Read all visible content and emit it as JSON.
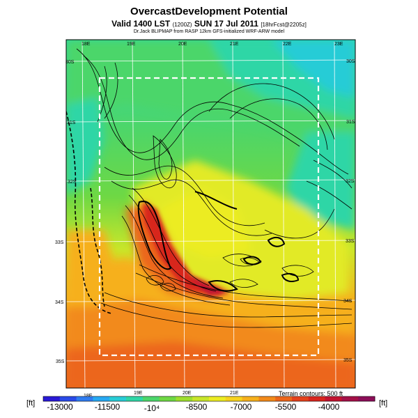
{
  "header": {
    "title": "OvercastDevelopment Potential",
    "subtitle_main": "Valid 1400 LST",
    "subtitle_z": "(1200Z)",
    "subtitle_date": "SUN 17 Jul 2011",
    "subtitle_fcst": "[18hrFcst@2205z]",
    "source": "Dr.Jack BLIPMAP from RASP 12km GFS-initialized WRF-ARW model"
  },
  "map": {
    "lon_labels_top": [
      "18E",
      "19E",
      "20E",
      "21E",
      "22E",
      "23E"
    ],
    "lon_labels_bottom": [
      "18E",
      "19E",
      "20E",
      "21E"
    ],
    "lat_labels_left": [
      "30S",
      "31S",
      "32S",
      "33S",
      "34S",
      "35S"
    ],
    "lat_labels_right": [
      "30S",
      "31S",
      "32S",
      "33S",
      "34S",
      "35S"
    ]
  },
  "colorbar": {
    "unit_left": "[ft]",
    "unit_right": "[ft]",
    "labels": [
      "-13000",
      "-11500",
      "-10⁴",
      "-8500",
      "-7000",
      "-5500",
      "-4000"
    ],
    "colors": [
      "#2a19d6",
      "#2a4be8",
      "#2f7cf0",
      "#27a9f2",
      "#28ccd6",
      "#2fd6a6",
      "#4cd66a",
      "#6ed844",
      "#9ede2e",
      "#c8e62a",
      "#ecec22",
      "#f6d21e",
      "#f6b01c",
      "#f28a1a",
      "#ec661a",
      "#e4421c",
      "#d8261e",
      "#c21430",
      "#a41048",
      "#8c0e58"
    ]
  },
  "terrain_note": "Terrain contours: 500 ft"
}
